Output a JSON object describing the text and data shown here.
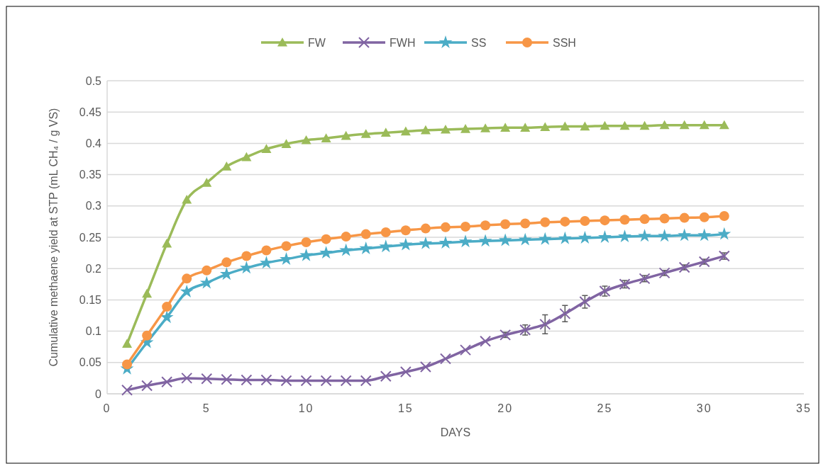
{
  "chart_data": {
    "type": "line",
    "xlabel": "DAYS",
    "ylabel": "Cumulative methaene yield at STP (mL CH₄ / g VS)",
    "x": [
      1,
      2,
      3,
      4,
      5,
      6,
      7,
      8,
      9,
      10,
      11,
      12,
      13,
      14,
      15,
      16,
      17,
      18,
      19,
      20,
      21,
      22,
      23,
      24,
      25,
      26,
      27,
      28,
      29,
      30,
      31
    ],
    "xlim": [
      0,
      35
    ],
    "xticks": [
      0,
      5,
      10,
      15,
      20,
      25,
      30,
      35
    ],
    "ylim": [
      0,
      0.5
    ],
    "yticks": [
      0,
      0.05,
      0.1,
      0.15,
      0.2,
      0.25,
      0.3,
      0.35,
      0.4,
      0.45,
      0.5
    ],
    "grid": "y",
    "legend": "top",
    "series": [
      {
        "name": "FW",
        "color": "#9bbb59",
        "marker": "triangle",
        "values": [
          0.08,
          0.16,
          0.24,
          0.31,
          0.337,
          0.363,
          0.378,
          0.391,
          0.399,
          0.405,
          0.408,
          0.412,
          0.415,
          0.417,
          0.419,
          0.421,
          0.422,
          0.423,
          0.424,
          0.425,
          0.425,
          0.426,
          0.427,
          0.427,
          0.428,
          0.428,
          0.428,
          0.429,
          0.429,
          0.429,
          0.429
        ]
      },
      {
        "name": "FWH",
        "color": "#8064a2",
        "marker": "cross",
        "values": [
          0.006,
          0.013,
          0.019,
          0.025,
          0.024,
          0.023,
          0.022,
          0.022,
          0.021,
          0.021,
          0.021,
          0.021,
          0.021,
          0.028,
          0.035,
          0.043,
          0.056,
          0.07,
          0.084,
          0.094,
          0.102,
          0.111,
          0.128,
          0.147,
          0.164,
          0.175,
          0.184,
          0.193,
          0.202,
          0.211,
          0.22
        ],
        "errors": [
          null,
          null,
          null,
          null,
          null,
          null,
          null,
          null,
          null,
          null,
          null,
          null,
          null,
          null,
          null,
          null,
          null,
          null,
          null,
          0.004,
          0.008,
          0.015,
          0.013,
          0.01,
          0.008,
          0.006,
          0.005,
          0.004,
          0.004,
          0.004,
          0.005
        ]
      },
      {
        "name": "SS",
        "color": "#4bacc6",
        "marker": "star",
        "values": [
          0.04,
          0.082,
          0.122,
          0.163,
          0.177,
          0.191,
          0.201,
          0.209,
          0.215,
          0.221,
          0.225,
          0.229,
          0.232,
          0.235,
          0.238,
          0.24,
          0.241,
          0.243,
          0.244,
          0.245,
          0.246,
          0.247,
          0.248,
          0.249,
          0.25,
          0.251,
          0.252,
          0.252,
          0.253,
          0.253,
          0.255
        ]
      },
      {
        "name": "SSH",
        "color": "#f79646",
        "marker": "circle",
        "values": [
          0.047,
          0.093,
          0.139,
          0.184,
          0.197,
          0.21,
          0.22,
          0.229,
          0.236,
          0.242,
          0.247,
          0.251,
          0.255,
          0.258,
          0.261,
          0.264,
          0.266,
          0.267,
          0.269,
          0.271,
          0.272,
          0.274,
          0.275,
          0.276,
          0.277,
          0.278,
          0.279,
          0.28,
          0.281,
          0.282,
          0.284
        ]
      }
    ]
  }
}
